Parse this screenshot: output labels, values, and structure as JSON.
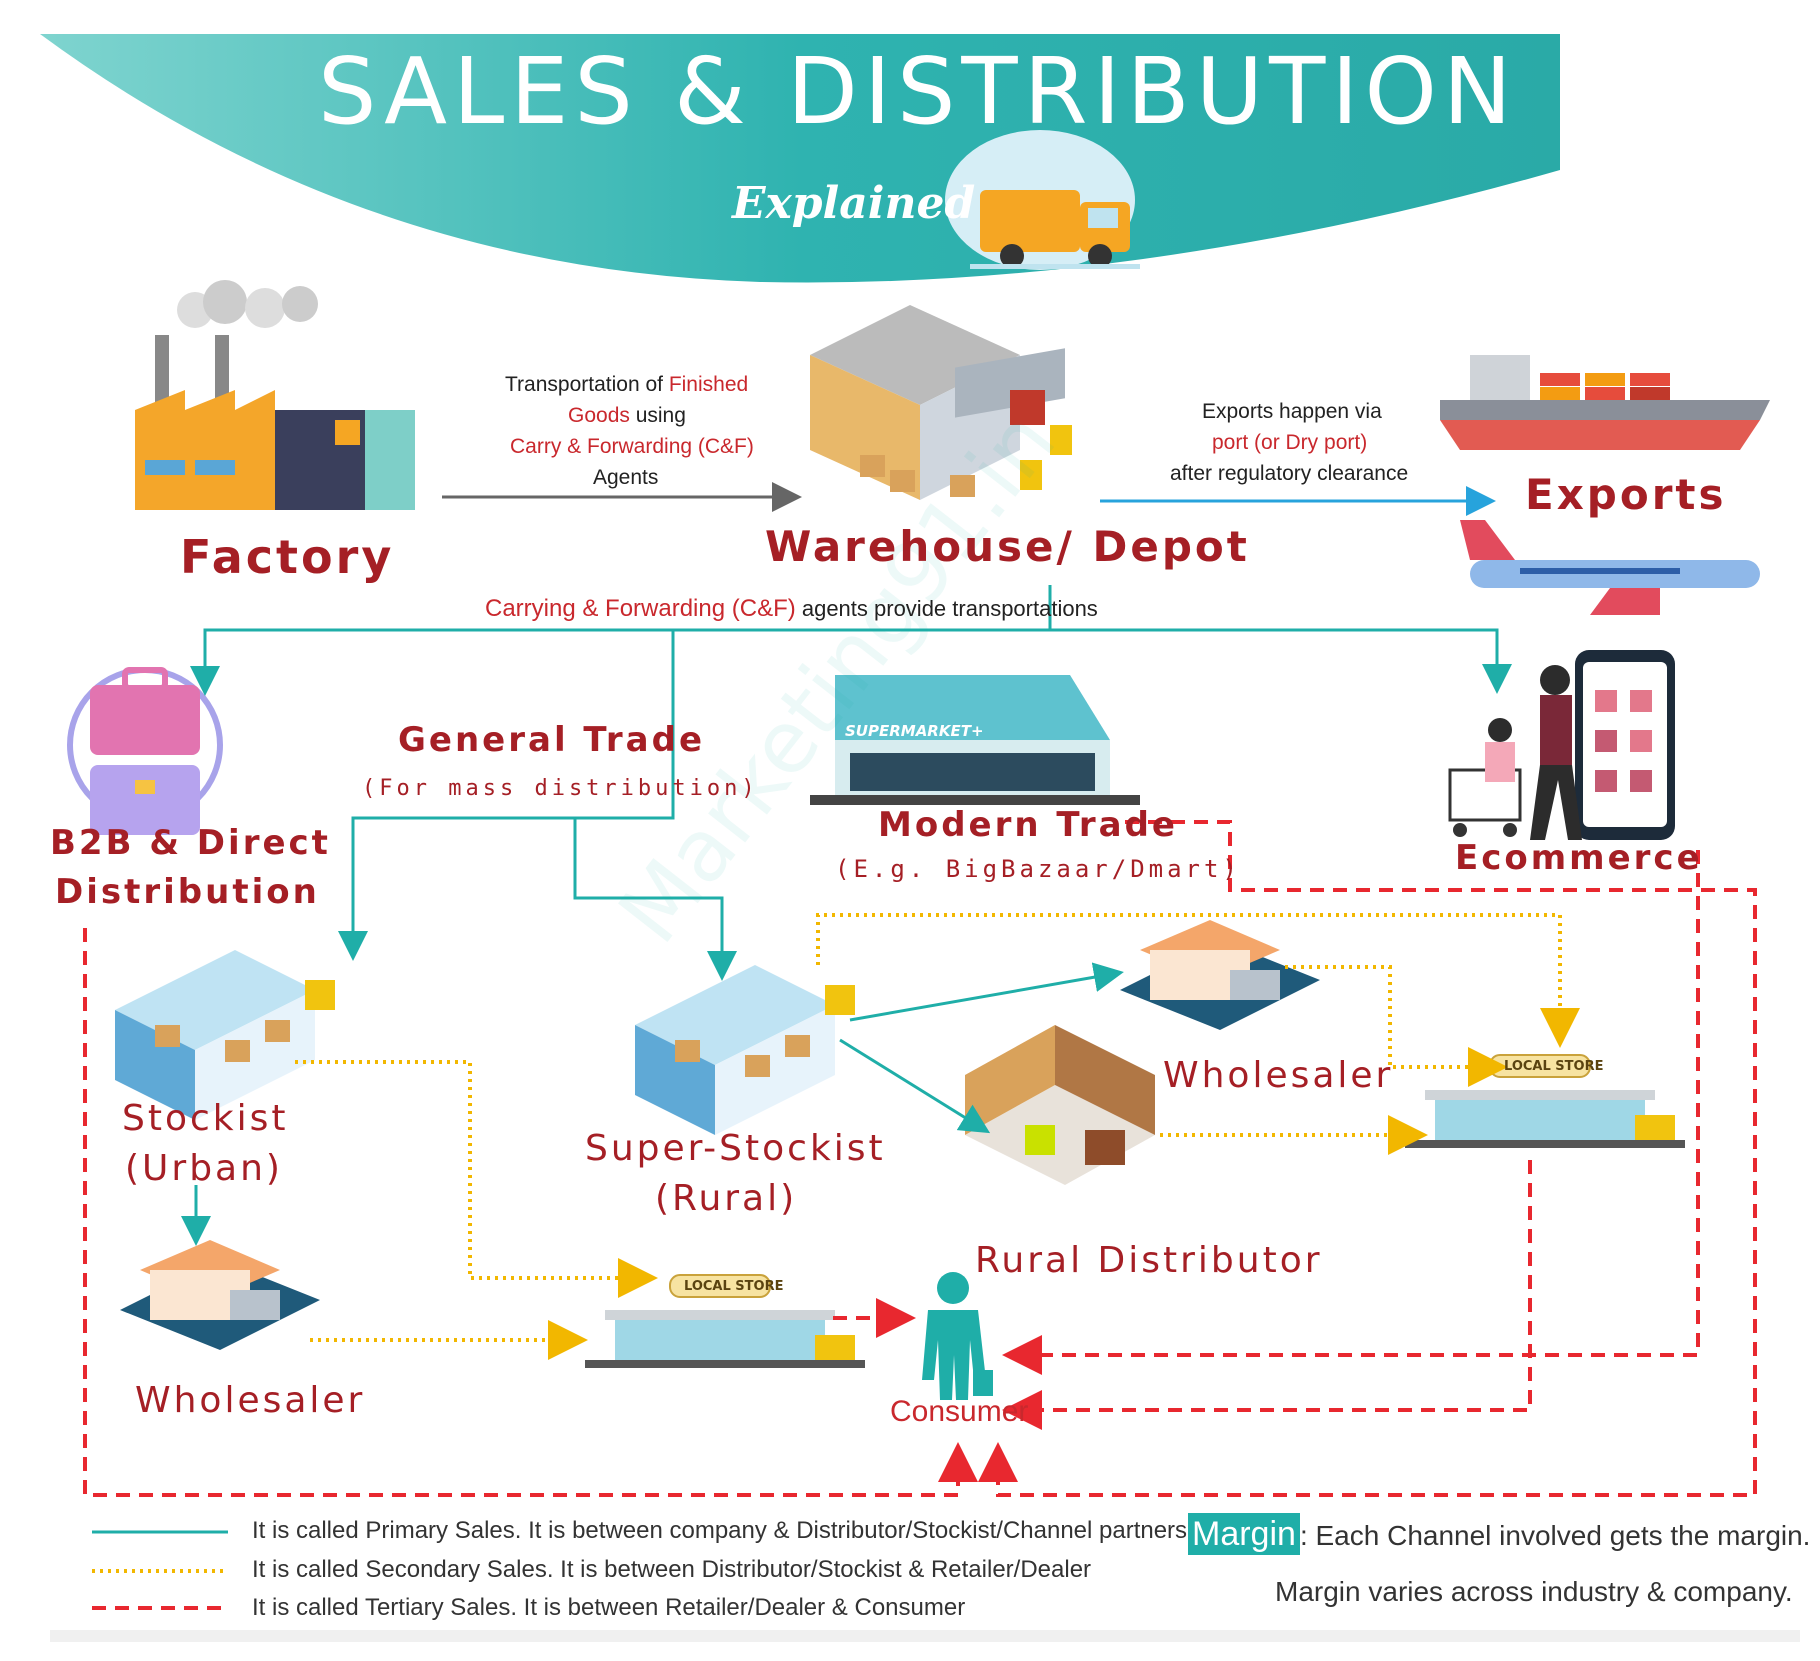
{
  "title": "SALES & DISTRIBUTION",
  "subtitle": "Explained",
  "watermark": "Marketing91.in",
  "nodes": {
    "factory": "Factory",
    "warehouse": "Warehouse/ Depot",
    "exports": "Exports",
    "b2b_line1": "B2B & Direct",
    "b2b_line2": "Distribution",
    "general_trade": "General Trade",
    "general_trade_sub": "(For mass distribution)",
    "modern_trade": "Modern Trade",
    "modern_trade_sub": "(E.g. BigBazaar/Dmart)",
    "ecommerce": "Ecommerce",
    "stockist_line1": "Stockist",
    "stockist_line2": "(Urban)",
    "super_stockist_line1": "Super-Stockist",
    "super_stockist_line2": "(Rural)",
    "wholesaler_right": "Wholesaler",
    "rural_distributor": "Rural Distributor",
    "wholesaler_left": "Wholesaler",
    "consumer": "Consumer",
    "local_store": "LOCAL STORE",
    "supermarket_sign": "SUPERMARKET+"
  },
  "annotations": {
    "transport_1a": "Transportation of ",
    "transport_1b": "Finished",
    "transport_2a": "Goods",
    "transport_2b": " using",
    "transport_3": "Carry & Forwarding (C&F)",
    "transport_4": "Agents",
    "exports_1": "Exports happen via",
    "exports_2": "port (or Dry port)",
    "exports_3": "after regulatory clearance",
    "cf_red": "Carrying & Forwarding (C&F)",
    "cf_black": " agents provide transportations"
  },
  "legend": [
    {
      "style": "solid",
      "text": "It is called Primary Sales. It is between company & Distributor/Stockist/Channel partners"
    },
    {
      "style": "dotted",
      "text": "It is called Secondary Sales. It is between Distributor/Stockist & Retailer/Dealer"
    },
    {
      "style": "dashed",
      "text": "It is called Tertiary Sales. It is between Retailer/Dealer & Consumer"
    }
  ],
  "margin_note": {
    "label": "Margin",
    "line1": ": Each Channel involved gets the margin.",
    "line2": "Margin varies across industry & company."
  },
  "colors": {
    "teal": "#2fb3b0",
    "primary_line": "#1faea8",
    "secondary_line": "#f2b700",
    "tertiary_line": "#e8282f",
    "label_red": "#a51f25"
  }
}
